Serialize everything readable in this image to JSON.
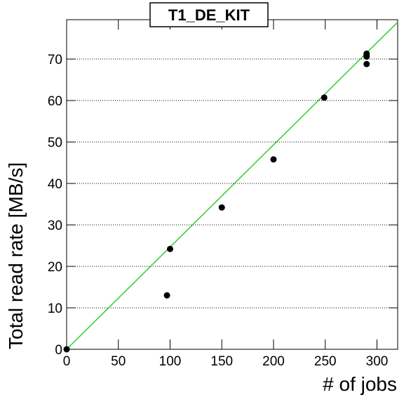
{
  "chart_data": {
    "type": "scatter",
    "title": "T1_DE_KIT",
    "x_label": "# of jobs",
    "y_label": "Total read rate [MB/s]",
    "x": [
      0,
      97,
      100,
      150,
      200,
      249,
      290,
      290,
      290,
      290
    ],
    "values": [
      0,
      13.0,
      24.2,
      34.2,
      45.8,
      60.7,
      68.8,
      70.6,
      70.9,
      71.3
    ],
    "color": "#000000",
    "fit": {
      "x": [
        0,
        320
      ],
      "values": [
        0,
        78.9
      ],
      "color": "#33cc33"
    },
    "xlim": [
      0,
      320
    ],
    "ylim": [
      0,
      79.5
    ],
    "xticks": [
      0,
      50,
      100,
      150,
      200,
      250,
      300
    ],
    "yticks": [
      0,
      10,
      20,
      30,
      40,
      50,
      60,
      70
    ],
    "grid": true
  }
}
